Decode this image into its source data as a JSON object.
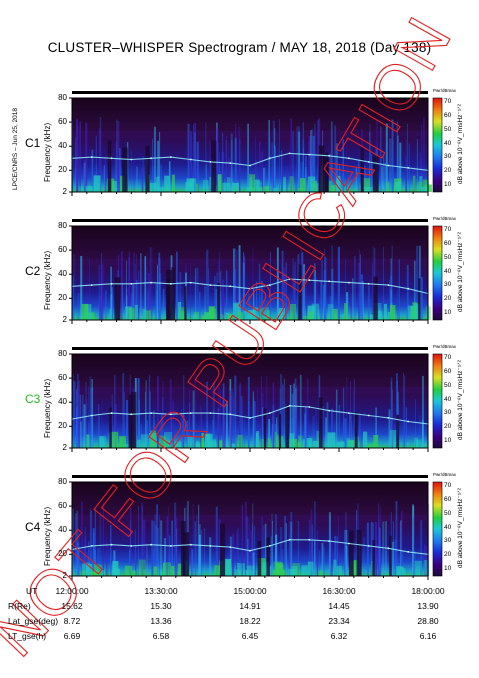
{
  "title": "CLUSTER–WHISPER Spectrogram / MAY 18, 2018 (Day 138)",
  "side_note": "LPCE/CNRS – Jun 25, 2018",
  "ylabel": "Frequency (kHz)",
  "colorbar_label": "dB above 10⁻⁸V_rmsHz⁻¹ᐟ²",
  "colorbar_head": "Pwr/dBmax",
  "colorbar_ticks": [
    "70",
    "60",
    "50",
    "40",
    "30",
    "20",
    "10"
  ],
  "freq_ticks": [
    "80",
    "60",
    "40",
    "20",
    "2"
  ],
  "panels": [
    {
      "name": "C1",
      "color": "#000000"
    },
    {
      "name": "C2",
      "color": "#000000"
    },
    {
      "name": "C3",
      "color": "#22bb22"
    },
    {
      "name": "C4",
      "color": "#000000"
    }
  ],
  "ephemeris": {
    "labels": [
      "UT",
      "R(Re)",
      "Lat_gse(deg)",
      "LT_gse(h)"
    ],
    "columns": [
      [
        "12:00:00",
        "15.62",
        "8.72",
        "6.69"
      ],
      [
        "13:30:00",
        "15.30",
        "13.36",
        "6.58"
      ],
      [
        "15:00:00",
        "14.91",
        "18.22",
        "6.45"
      ],
      [
        "16:30:00",
        "14.45",
        "23.34",
        "6.32"
      ],
      [
        "18:00:00",
        "13.90",
        "28.80",
        "6.16"
      ]
    ]
  },
  "watermark": "NOT FOR PUBLICATION",
  "chart_data": {
    "type": "heatmap",
    "title": "CLUSTER–WHISPER Spectrogram / MAY 18, 2018 (Day 138)",
    "xlabel": "UT",
    "ylabel": "Frequency (kHz)",
    "x_ticks": [
      "12:00:00",
      "13:30:00",
      "15:00:00",
      "16:30:00",
      "18:00:00"
    ],
    "xlim": [
      "12:00:00",
      "18:00:00"
    ],
    "ylim": [
      2,
      80
    ],
    "y_ticks": [
      2,
      20,
      40,
      60,
      80
    ],
    "colorbar_range": [
      10,
      70
    ],
    "series": [
      {
        "name": "C1",
        "plasma_line_khz": [
          30,
          31,
          30,
          29,
          30,
          31,
          29,
          27,
          26,
          24,
          30,
          34,
          33,
          32,
          30,
          27,
          24,
          22,
          20
        ]
      },
      {
        "name": "C2",
        "plasma_line_khz": [
          30,
          31,
          32,
          32,
          33,
          32,
          33,
          31,
          30,
          28,
          31,
          36,
          35,
          34,
          33,
          32,
          31,
          28,
          24
        ]
      },
      {
        "name": "C3",
        "plasma_line_khz": [
          26,
          29,
          31,
          30,
          31,
          30,
          31,
          31,
          30,
          27,
          31,
          37,
          36,
          33,
          31,
          29,
          27,
          24,
          22
        ]
      },
      {
        "name": "C4",
        "plasma_line_khz": [
          24,
          27,
          28,
          27,
          28,
          27,
          28,
          27,
          26,
          23,
          27,
          32,
          32,
          31,
          29,
          27,
          25,
          22,
          20
        ]
      }
    ]
  }
}
